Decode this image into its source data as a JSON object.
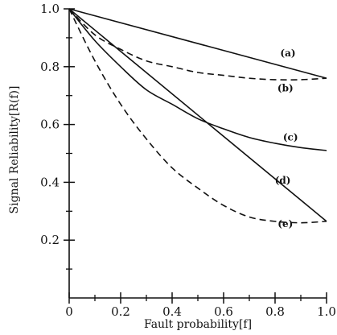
{
  "chart_data": {
    "type": "line",
    "xlabel": "Fault probability[f]",
    "ylabel": "Signal  Reliability[R(f)]",
    "xlim": [
      0,
      1
    ],
    "ylim": [
      0,
      1
    ],
    "x_ticks": [
      {
        "value": 0,
        "label": "0"
      },
      {
        "value": 0.2,
        "label": "0.2"
      },
      {
        "value": 0.4,
        "label": "0.4"
      },
      {
        "value": 0.6,
        "label": "0.6"
      },
      {
        "value": 0.8,
        "label": "0.8"
      },
      {
        "value": 1.0,
        "label": "1.0"
      }
    ],
    "y_ticks": [
      {
        "value": 0.2,
        "label": "0.2"
      },
      {
        "value": 0.4,
        "label": "0.4"
      },
      {
        "value": 0.6,
        "label": "0.6"
      },
      {
        "value": 0.8,
        "label": "0.8"
      },
      {
        "value": 1.0,
        "label": "1.0"
      }
    ],
    "x_minor_ticks": [
      0.1,
      0.3,
      0.5,
      0.7,
      0.9
    ],
    "y_minor_ticks": [
      0.1,
      0.3,
      0.5,
      0.7,
      0.9
    ],
    "grid": false,
    "series": [
      {
        "name": "(a)",
        "style": "solid",
        "x": [
          0,
          1.0
        ],
        "y": [
          1.0,
          0.76
        ]
      },
      {
        "name": "(b)",
        "style": "dashed",
        "x": [
          0,
          0.1,
          0.2,
          0.3,
          0.4,
          0.5,
          0.6,
          0.7,
          0.8,
          0.9,
          1.0
        ],
        "y": [
          1.0,
          0.91,
          0.86,
          0.82,
          0.8,
          0.78,
          0.77,
          0.76,
          0.755,
          0.755,
          0.76
        ]
      },
      {
        "name": "(c)",
        "style": "solid",
        "x": [
          0,
          0.1,
          0.2,
          0.3,
          0.4,
          0.5,
          0.6,
          0.7,
          0.8,
          0.9,
          1.0
        ],
        "y": [
          1.0,
          0.89,
          0.8,
          0.72,
          0.67,
          0.62,
          0.585,
          0.555,
          0.535,
          0.52,
          0.51
        ]
      },
      {
        "name": "(d)",
        "style": "solid",
        "x": [
          0,
          1.0
        ],
        "y": [
          1.0,
          0.265
        ]
      },
      {
        "name": "(e)",
        "style": "dashed",
        "x": [
          0,
          0.1,
          0.2,
          0.3,
          0.4,
          0.5,
          0.6,
          0.7,
          0.8,
          0.9,
          1.0
        ],
        "y": [
          1.0,
          0.82,
          0.67,
          0.55,
          0.45,
          0.38,
          0.32,
          0.28,
          0.265,
          0.26,
          0.265
        ]
      }
    ]
  }
}
